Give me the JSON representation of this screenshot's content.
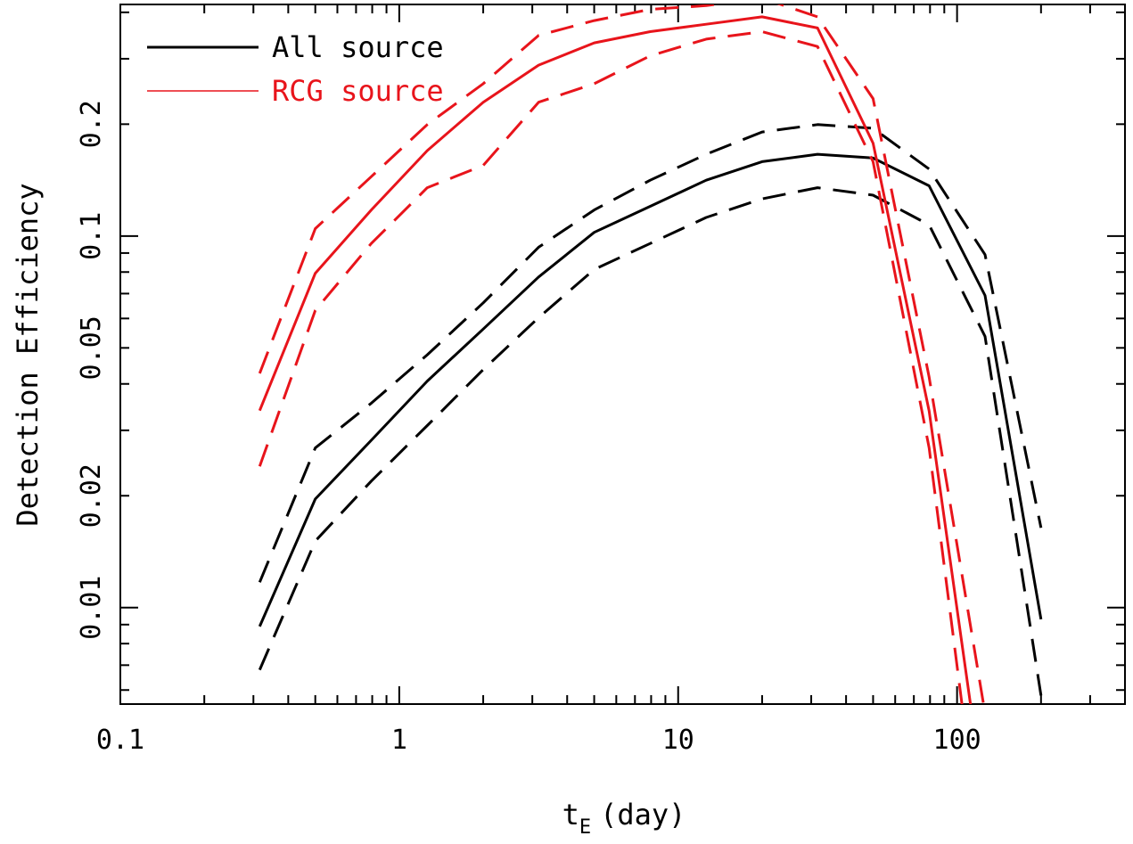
{
  "chart_data": {
    "type": "line",
    "title": "",
    "xlabel": "t",
    "xlabel_sub": "E",
    "xlabel_unit": "(day)",
    "ylabel": "Detection Efficiency",
    "x_scale": "log",
    "y_scale": "log",
    "xlim": [
      0.1,
      400
    ],
    "ylim": [
      0.0055,
      0.42
    ],
    "x_tick_labels": [
      "0.1",
      "1",
      "10",
      "100"
    ],
    "y_tick_labels": [
      "0.01",
      "0.02",
      "0.05",
      "0.1",
      "0.2"
    ],
    "grid": false,
    "legend_position": "top-left",
    "legend": [
      {
        "label": "All source",
        "color": "#000000"
      },
      {
        "label": "RCG source",
        "color": "#e8141b"
      }
    ],
    "x": [
      0.316,
      0.5,
      0.794,
      1.26,
      2.0,
      3.16,
      5.0,
      7.94,
      12.6,
      20.0,
      31.6,
      50.0,
      79.4,
      126,
      200
    ],
    "series": [
      {
        "name": "All source",
        "color": "#000000",
        "style": "solid",
        "y": [
          0.0089,
          0.0196,
          0.0282,
          0.0407,
          0.0562,
          0.0776,
          0.1023,
          0.1202,
          0.1413,
          0.1585,
          0.166,
          0.1622,
          0.1365,
          0.0692,
          0.0093
        ]
      },
      {
        "name": "All source upper",
        "color": "#000000",
        "style": "dashed",
        "y": [
          0.0117,
          0.0269,
          0.0355,
          0.0479,
          0.0661,
          0.0933,
          0.1175,
          0.1413,
          0.166,
          0.1905,
          0.1995,
          0.195,
          0.1514,
          0.0891,
          0.0164
        ]
      },
      {
        "name": "All source lower",
        "color": "#000000",
        "style": "dashed",
        "y": [
          0.0068,
          0.0151,
          0.0219,
          0.0309,
          0.0437,
          0.0603,
          0.0813,
          0.0955,
          0.1122,
          0.1259,
          0.1349,
          0.1288,
          0.1072,
          0.0537,
          0.0058
        ]
      },
      {
        "name": "RCG source",
        "color": "#e8141b",
        "style": "solid",
        "y": [
          0.0339,
          0.0794,
          0.1175,
          0.1698,
          0.2291,
          0.2884,
          0.3311,
          0.3548,
          0.3715,
          0.389,
          0.3631,
          0.1778,
          0.0338,
          0.0029,
          null
        ]
      },
      {
        "name": "RCG source upper",
        "color": "#e8141b",
        "style": "dashed",
        "y": [
          0.0427,
          0.1047,
          0.1445,
          0.1995,
          0.257,
          0.3467,
          0.3801,
          0.4074,
          0.4169,
          0.4365,
          0.389,
          0.2344,
          0.0417,
          0.0052,
          null
        ]
      },
      {
        "name": "RCG source lower",
        "color": "#e8141b",
        "style": "dashed",
        "y": [
          0.024,
          0.0631,
          0.0955,
          0.1349,
          0.1549,
          0.2291,
          0.257,
          0.3055,
          0.3388,
          0.3548,
          0.3236,
          0.1585,
          0.0269,
          0.0018,
          null
        ]
      }
    ]
  }
}
